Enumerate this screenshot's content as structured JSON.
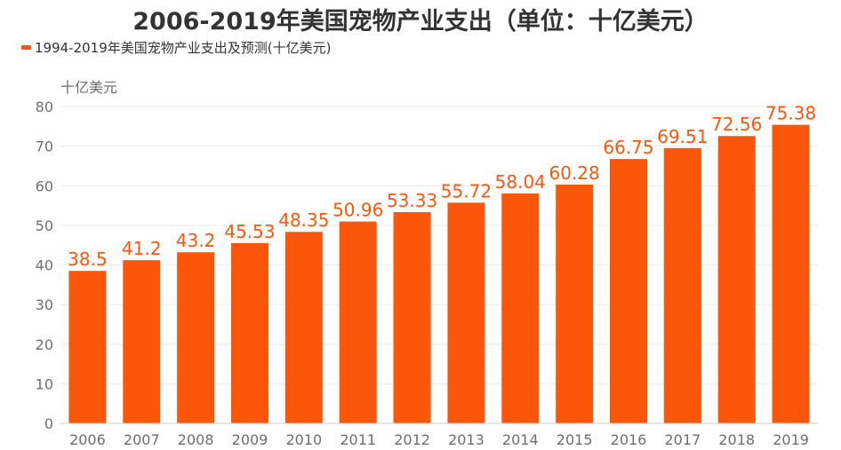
{
  "title": "2006-2019年美国宠物产业支出（单位：十亿美元）",
  "colors": {
    "bar": "#fb560a",
    "label": "#fb560a",
    "axis_text": "#6e6e6e",
    "grid": "#ececec",
    "title": "#333333"
  },
  "chart_data": {
    "type": "bar",
    "title": "2006-2019年美国宠物产业支出（单位：十亿美元）",
    "ylabel": "十亿美元",
    "xlabel": "",
    "categories": [
      "2006",
      "2007",
      "2008",
      "2009",
      "2010",
      "2011",
      "2012",
      "2013",
      "2014",
      "2015",
      "2016",
      "2017",
      "2018",
      "2019"
    ],
    "series": [
      {
        "name": "1994-2019年美国宠物产业支出及预测(十亿美元)",
        "values": [
          38.5,
          41.2,
          43.2,
          45.53,
          48.35,
          50.96,
          53.33,
          55.72,
          58.04,
          60.28,
          66.75,
          69.51,
          72.56,
          75.38
        ],
        "labels": [
          "38.5",
          "41.2",
          "43.2",
          "45.53",
          "48.35",
          "50.96",
          "53.33",
          "55.72",
          "58.04",
          "60.28",
          "66.75",
          "69.51",
          "72.56",
          "75.38"
        ]
      }
    ],
    "ylim": [
      0,
      80
    ],
    "yticks": [
      0,
      10,
      20,
      30,
      40,
      50,
      60,
      70,
      80
    ],
    "grid": true,
    "legend_position": "top-left"
  }
}
